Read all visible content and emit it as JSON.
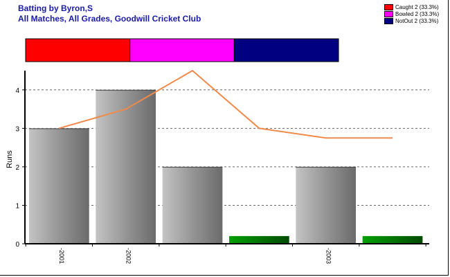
{
  "chart_data": {
    "type": "bar",
    "title": "Batting by Byron,S",
    "subtitle": "All Matches, All Grades, Goodwill Cricket Club",
    "ylabel": "Runs",
    "ylim": [
      0,
      4.5
    ],
    "yticks": [
      "0",
      "1",
      "2",
      "3",
      "4"
    ],
    "xtick_labels": [
      "2001",
      "2002",
      "2003"
    ],
    "xtick_bar_index": [
      0,
      1,
      4
    ],
    "grid": true,
    "bars": [
      {
        "value": 3,
        "kind": "scored"
      },
      {
        "value": 4,
        "kind": "scored"
      },
      {
        "value": 2,
        "kind": "scored"
      },
      {
        "value": 0.2,
        "kind": "not-out"
      },
      {
        "value": 2,
        "kind": "scored"
      },
      {
        "value": 0.2,
        "kind": "not-out"
      }
    ],
    "line": {
      "color": "#f08a4b",
      "values": [
        3.0,
        3.5,
        4.5,
        3.0,
        2.75,
        2.75
      ]
    },
    "dismissal_bar": [
      {
        "label": "Caught 2 (33.3%)",
        "value": 2,
        "color": "#ff0000"
      },
      {
        "label": "Bowled 2 (33.3%)",
        "value": 2,
        "color": "#ff00ff"
      },
      {
        "label": "NotOut 2 (33.3%)",
        "value": 2,
        "color": "#000080"
      }
    ],
    "legend_position": "top-right"
  }
}
